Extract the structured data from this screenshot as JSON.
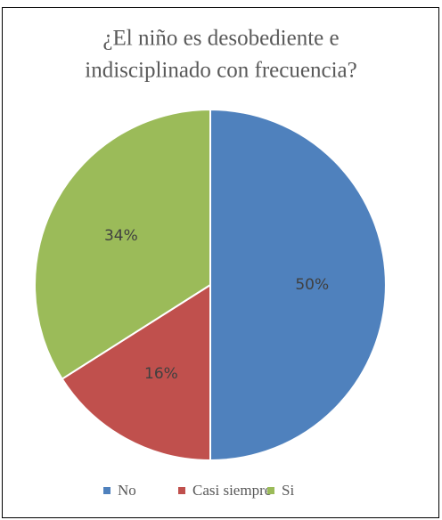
{
  "chart_data": {
    "type": "pie",
    "title": [
      "¿El niño  es desobediente  e",
      "indisciplinado  con frecuencia?"
    ],
    "categories": [
      "No",
      "Casi siempre",
      "Si"
    ],
    "values": [
      50,
      16,
      34
    ],
    "value_labels": [
      "50%",
      "16%",
      "34%"
    ],
    "colors": [
      "#4f81bd",
      "#c0504d",
      "#9bbb59"
    ],
    "legend": "bottom"
  }
}
